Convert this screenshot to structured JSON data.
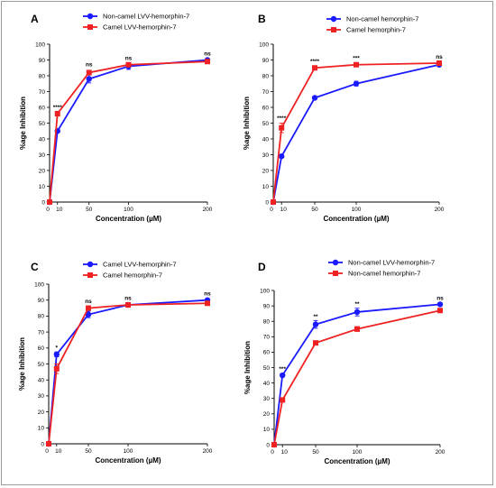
{
  "chart_data": [
    {
      "type": "line",
      "panel": "A",
      "xlabel": "Concentration (µM)",
      "ylabel": "%age Inhibition",
      "x_ticks": [
        0,
        10,
        50,
        100,
        200
      ],
      "y_ticks": [
        0,
        10,
        20,
        30,
        40,
        50,
        60,
        70,
        80,
        90,
        100
      ],
      "xlim": [
        0,
        200
      ],
      "ylim": [
        0,
        100
      ],
      "legend_position": "top-left",
      "series": [
        {
          "name": "Non-camel LVV-hemorphin-7",
          "color": "#1a1aff",
          "marker": "circle",
          "x": [
            0,
            10,
            50,
            100,
            200
          ],
          "y": [
            0,
            45,
            78,
            86,
            90
          ],
          "err": [
            0,
            1,
            2.5,
            2,
            1
          ]
        },
        {
          "name": "Camel LVV-hemorphin-7",
          "color": "#ee2222",
          "marker": "square",
          "x": [
            0,
            10,
            50,
            100,
            200
          ],
          "y": [
            0,
            56,
            82,
            87,
            89
          ],
          "err": [
            0,
            1.5,
            1.5,
            1,
            1
          ]
        }
      ],
      "annotations": [
        {
          "x": 10,
          "y": 59,
          "text": "****"
        },
        {
          "x": 50,
          "y": 86,
          "text": "ns"
        },
        {
          "x": 100,
          "y": 90,
          "text": "ns"
        },
        {
          "x": 200,
          "y": 93,
          "text": "ns"
        }
      ]
    },
    {
      "type": "line",
      "panel": "B",
      "xlabel": "Concentration (µM)",
      "ylabel": "%age Inhibition",
      "x_ticks": [
        0,
        10,
        50,
        100,
        200
      ],
      "y_ticks": [
        0,
        10,
        20,
        30,
        40,
        50,
        60,
        70,
        80,
        90,
        100
      ],
      "xlim": [
        0,
        200
      ],
      "ylim": [
        0,
        100
      ],
      "legend_position": "top-left",
      "series": [
        {
          "name": "Non-camel hemorphin-7",
          "color": "#1a1aff",
          "marker": "circle",
          "x": [
            0,
            10,
            50,
            100,
            200
          ],
          "y": [
            0,
            29,
            66,
            75,
            87
          ],
          "err": [
            0,
            1,
            1,
            1.5,
            1
          ]
        },
        {
          "name": "Camel hemorphin-7",
          "color": "#ee2222",
          "marker": "square",
          "x": [
            0,
            10,
            50,
            100,
            200
          ],
          "y": [
            0,
            47,
            85,
            87,
            88
          ],
          "err": [
            0,
            3,
            1,
            1,
            1
          ]
        }
      ],
      "annotations": [
        {
          "x": 10,
          "y": 52,
          "text": "****"
        },
        {
          "x": 50,
          "y": 88,
          "text": "****"
        },
        {
          "x": 100,
          "y": 90,
          "text": "***"
        },
        {
          "x": 200,
          "y": 91,
          "text": "ns"
        }
      ]
    },
    {
      "type": "line",
      "panel": "C",
      "xlabel": "Concentration (µM)",
      "ylabel": "%age Inhibition",
      "x_ticks": [
        0,
        10,
        50,
        100,
        200
      ],
      "y_ticks": [
        0,
        10,
        20,
        30,
        40,
        50,
        60,
        70,
        80,
        90,
        100
      ],
      "xlim": [
        0,
        200
      ],
      "ylim": [
        0,
        100
      ],
      "legend_position": "top-left",
      "series": [
        {
          "name": "Camel LVV-hemorphin-7",
          "color": "#1a1aff",
          "marker": "circle",
          "x": [
            0,
            10,
            50,
            100,
            200
          ],
          "y": [
            0,
            56,
            81,
            87,
            90
          ],
          "err": [
            0,
            1.5,
            2,
            1,
            1
          ]
        },
        {
          "name": "Camel hemorphin-7",
          "color": "#ee2222",
          "marker": "square",
          "x": [
            0,
            10,
            50,
            100,
            200
          ],
          "y": [
            0,
            47,
            85,
            87,
            88
          ],
          "err": [
            0,
            3,
            1,
            1,
            1
          ]
        }
      ],
      "annotations": [
        {
          "x": 10,
          "y": 59,
          "text": "*"
        },
        {
          "x": 50,
          "y": 88,
          "text": "ns"
        },
        {
          "x": 100,
          "y": 90,
          "text": "ns"
        },
        {
          "x": 200,
          "y": 93,
          "text": "ns"
        }
      ]
    },
    {
      "type": "line",
      "panel": "D",
      "xlabel": "Concentration (µM)",
      "ylabel": "%age Inhibition",
      "x_ticks": [
        0,
        10,
        50,
        100,
        200
      ],
      "y_ticks": [
        0,
        10,
        20,
        30,
        40,
        50,
        60,
        70,
        80,
        90,
        100
      ],
      "xlim": [
        0,
        200
      ],
      "ylim": [
        0,
        100
      ],
      "legend_position": "top-left",
      "series": [
        {
          "name": "Non-camel LVV-hemorphin-7",
          "color": "#1a1aff",
          "marker": "circle",
          "x": [
            0,
            10,
            50,
            100,
            200
          ],
          "y": [
            0,
            45,
            78,
            86,
            91
          ],
          "err": [
            0,
            1,
            2.5,
            2.5,
            1
          ]
        },
        {
          "name": "Non-camel hemorphin-7",
          "color": "#ee2222",
          "marker": "square",
          "x": [
            0,
            10,
            50,
            100,
            200
          ],
          "y": [
            0,
            29,
            66,
            75,
            87
          ],
          "err": [
            0,
            1,
            1,
            1.5,
            1
          ]
        }
      ],
      "annotations": [
        {
          "x": 10,
          "y": 48,
          "text": "***"
        },
        {
          "x": 50,
          "y": 82,
          "text": "**"
        },
        {
          "x": 100,
          "y": 90,
          "text": "**"
        },
        {
          "x": 200,
          "y": 94,
          "text": "ns"
        }
      ]
    }
  ]
}
